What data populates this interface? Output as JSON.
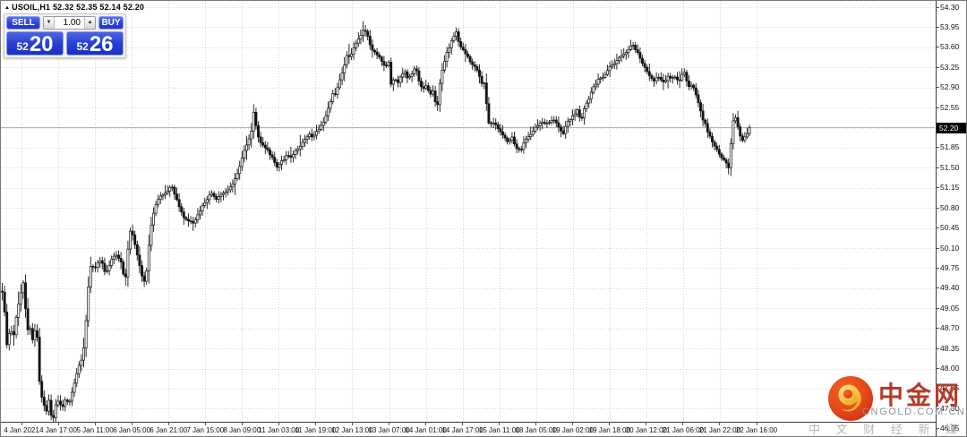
{
  "header": {
    "arrow_icon": "▲",
    "symbol": "USOIL,H1",
    "ohlc": "52.32 52.35 52.14 52.20"
  },
  "trade_panel": {
    "sell_label": "SELL",
    "buy_label": "BUY",
    "volume": "1.00",
    "volume_down_icon": "▼",
    "volume_up_icon": "▲",
    "sell_price_small": "52",
    "sell_price_big": "20",
    "buy_price_small": "52",
    "buy_price_big": "26",
    "accent_blue": "#2b41d6"
  },
  "price_axis": {
    "current_price": "52.20",
    "tag_bg": "#000000",
    "tag_fg": "#ffffff"
  },
  "watermark": {
    "title": "中金网",
    "domain": "CNGOLD.COM.CN",
    "tagline": "中 文 财 经 新 媒 体",
    "logo_ring_color": "#e8491d",
    "logo_swirl_color": "#f6c24a",
    "title_color": "#b53a2b"
  },
  "chart_data": {
    "type": "candlestick",
    "symbol": "USOIL",
    "timeframe": "H1",
    "current_bar_ohlc": {
      "open": 52.32,
      "high": 52.35,
      "low": 52.14,
      "close": 52.2
    },
    "current_price": 52.2,
    "ylim": [
      46.95,
      54.3
    ],
    "price_step": 0.35,
    "grid": true,
    "y_ticks": [
      "54.30",
      "53.95",
      "53.60",
      "53.25",
      "52.90",
      "52.55",
      "52.20",
      "51.85",
      "51.50",
      "51.15",
      "50.80",
      "50.45",
      "50.10",
      "49.75",
      "49.40",
      "49.05",
      "48.70",
      "48.35",
      "48.00",
      "47.65",
      "47.30",
      "46.95"
    ],
    "x_ticks": [
      "4 Jan 2021",
      "4 Jan 17:00",
      "5 Jan 11:00",
      "6 Jan 05:00",
      "6 Jan 21:00",
      "7 Jan 15:00",
      "8 Jan 09:00",
      "11 Jan 03:00",
      "11 Jan 19:00",
      "12 Jan 13:00",
      "13 Jan 07:00",
      "14 Jan 01:00",
      "14 Jan 17:00",
      "15 Jan 11:00",
      "18 Jan 05:00",
      "19 Jan 02:00",
      "19 Jan 18:00",
      "20 Jan 12:00",
      "21 Jan 06:00",
      "21 Jan 22:00",
      "22 Jan 16:00"
    ],
    "bull_color": "#ffffff",
    "bear_color": "#141414",
    "outline_color": "#141414",
    "bid_line_color": "#b3b3b3",
    "path": [
      [
        2,
        49.35
      ],
      [
        4,
        49.0
      ],
      [
        7,
        48.35
      ],
      [
        10,
        48.7
      ],
      [
        14,
        48.55
      ],
      [
        18,
        49.0
      ],
      [
        22,
        49.3
      ],
      [
        25,
        49.5
      ],
      [
        27,
        49.15
      ],
      [
        29,
        48.65
      ],
      [
        32,
        48.75
      ],
      [
        35,
        48.5
      ],
      [
        38,
        48.65
      ],
      [
        42,
        48.5
      ],
      [
        43,
        47.8
      ],
      [
        45,
        47.55
      ],
      [
        48,
        47.4
      ],
      [
        50,
        47.15
      ],
      [
        53,
        47.5
      ],
      [
        55,
        47.25
      ],
      [
        58,
        47.08
      ],
      [
        61,
        47.35
      ],
      [
        64,
        47.45
      ],
      [
        68,
        47.3
      ],
      [
        72,
        47.45
      ],
      [
        76,
        47.38
      ],
      [
        80,
        47.6
      ],
      [
        84,
        47.85
      ],
      [
        88,
        48.1
      ],
      [
        91,
        48.2
      ],
      [
        94,
        48.55
      ],
      [
        97,
        49.3
      ],
      [
        99,
        49.7
      ],
      [
        101,
        49.85
      ],
      [
        104,
        49.7
      ],
      [
        107,
        49.8
      ],
      [
        110,
        49.9
      ],
      [
        113,
        49.85
      ],
      [
        116,
        49.68
      ],
      [
        119,
        49.72
      ],
      [
        122,
        49.85
      ],
      [
        125,
        49.95
      ],
      [
        128,
        50.0
      ],
      [
        131,
        49.92
      ],
      [
        134,
        49.85
      ],
      [
        137,
        49.62
      ],
      [
        140,
        49.58
      ],
      [
        142,
        50.1
      ],
      [
        144,
        50.4
      ],
      [
        147,
        50.35
      ],
      [
        150,
        50.15
      ],
      [
        153,
        49.95
      ],
      [
        156,
        49.7
      ],
      [
        159,
        49.5
      ],
      [
        162,
        49.6
      ],
      [
        165,
        50.1
      ],
      [
        168,
        50.5
      ],
      [
        171,
        50.75
      ],
      [
        174,
        50.9
      ],
      [
        178,
        51.0
      ],
      [
        182,
        51.05
      ],
      [
        186,
        51.1
      ],
      [
        190,
        51.2
      ],
      [
        193,
        51.1
      ],
      [
        196,
        50.95
      ],
      [
        200,
        50.8
      ],
      [
        204,
        50.62
      ],
      [
        208,
        50.6
      ],
      [
        212,
        50.55
      ],
      [
        216,
        50.55
      ],
      [
        220,
        50.7
      ],
      [
        224,
        50.8
      ],
      [
        228,
        50.9
      ],
      [
        232,
        51.0
      ],
      [
        236,
        51.05
      ],
      [
        240,
        50.95
      ],
      [
        244,
        51.0
      ],
      [
        248,
        51.05
      ],
      [
        252,
        51.08
      ],
      [
        256,
        51.15
      ],
      [
        260,
        51.25
      ],
      [
        264,
        51.4
      ],
      [
        268,
        51.6
      ],
      [
        272,
        51.8
      ],
      [
        276,
        51.95
      ],
      [
        280,
        52.15
      ],
      [
        282,
        52.5
      ],
      [
        284,
        52.3
      ],
      [
        287,
        52.05
      ],
      [
        290,
        51.95
      ],
      [
        294,
        51.88
      ],
      [
        298,
        51.8
      ],
      [
        302,
        51.7
      ],
      [
        306,
        51.6
      ],
      [
        309,
        51.5
      ],
      [
        312,
        51.58
      ],
      [
        316,
        51.65
      ],
      [
        320,
        51.72
      ],
      [
        324,
        51.68
      ],
      [
        328,
        51.78
      ],
      [
        332,
        51.85
      ],
      [
        336,
        51.92
      ],
      [
        340,
        52.0
      ],
      [
        344,
        52.08
      ],
      [
        348,
        52.03
      ],
      [
        352,
        52.12
      ],
      [
        356,
        52.18
      ],
      [
        360,
        52.3
      ],
      [
        364,
        52.45
      ],
      [
        368,
        52.65
      ],
      [
        371,
        52.82
      ],
      [
        374,
        52.78
      ],
      [
        377,
        52.95
      ],
      [
        380,
        53.1
      ],
      [
        384,
        53.3
      ],
      [
        387,
        53.5
      ],
      [
        390,
        53.42
      ],
      [
        394,
        53.58
      ],
      [
        398,
        53.7
      ],
      [
        402,
        53.82
      ],
      [
        405,
        53.92
      ],
      [
        408,
        53.85
      ],
      [
        411,
        53.72
      ],
      [
        414,
        53.58
      ],
      [
        418,
        53.5
      ],
      [
        422,
        53.45
      ],
      [
        426,
        53.32
      ],
      [
        430,
        53.28
      ],
      [
        433,
        53.35
      ],
      [
        435,
        52.95
      ],
      [
        439,
        53.05
      ],
      [
        443,
        52.98
      ],
      [
        447,
        53.1
      ],
      [
        451,
        53.18
      ],
      [
        455,
        53.05
      ],
      [
        459,
        53.15
      ],
      [
        463,
        53.27
      ],
      [
        467,
        53.0
      ],
      [
        471,
        52.85
      ],
      [
        475,
        52.95
      ],
      [
        479,
        52.78
      ],
      [
        483,
        52.85
      ],
      [
        487,
        52.5
      ],
      [
        490,
        52.95
      ],
      [
        493,
        53.2
      ],
      [
        496,
        53.4
      ],
      [
        499,
        53.55
      ],
      [
        502,
        53.65
      ],
      [
        505,
        53.78
      ],
      [
        508,
        53.88
      ],
      [
        511,
        53.72
      ],
      [
        514,
        53.6
      ],
      [
        518,
        53.52
      ],
      [
        522,
        53.42
      ],
      [
        526,
        53.3
      ],
      [
        530,
        53.27
      ],
      [
        534,
        53.1
      ],
      [
        538,
        52.95
      ],
      [
        541,
        52.98
      ],
      [
        543,
        52.4
      ],
      [
        546,
        52.22
      ],
      [
        549,
        52.32
      ],
      [
        552,
        52.26
      ],
      [
        556,
        52.15
      ],
      [
        560,
        52.1
      ],
      [
        564,
        52.0
      ],
      [
        567,
        51.95
      ],
      [
        570,
        52.05
      ],
      [
        573,
        51.95
      ],
      [
        576,
        51.85
      ],
      [
        580,
        51.78
      ],
      [
        584,
        51.95
      ],
      [
        588,
        52.0
      ],
      [
        592,
        52.1
      ],
      [
        596,
        52.2
      ],
      [
        600,
        52.25
      ],
      [
        604,
        52.3
      ],
      [
        608,
        52.25
      ],
      [
        612,
        52.3
      ],
      [
        616,
        52.35
      ],
      [
        620,
        52.3
      ],
      [
        624,
        52.18
      ],
      [
        628,
        52.1
      ],
      [
        632,
        52.3
      ],
      [
        636,
        52.35
      ],
      [
        640,
        52.42
      ],
      [
        644,
        52.5
      ],
      [
        648,
        52.3
      ],
      [
        652,
        52.55
      ],
      [
        656,
        52.68
      ],
      [
        660,
        52.85
      ],
      [
        664,
        52.95
      ],
      [
        668,
        53.05
      ],
      [
        672,
        53.08
      ],
      [
        676,
        53.15
      ],
      [
        680,
        53.25
      ],
      [
        685,
        53.3
      ],
      [
        690,
        53.4
      ],
      [
        695,
        53.48
      ],
      [
        700,
        53.55
      ],
      [
        705,
        53.65
      ],
      [
        709,
        53.55
      ],
      [
        713,
        53.45
      ],
      [
        717,
        53.3
      ],
      [
        721,
        53.2
      ],
      [
        725,
        53.1
      ],
      [
        729,
        53.0
      ],
      [
        733,
        53.1
      ],
      [
        737,
        53.05
      ],
      [
        741,
        53.0
      ],
      [
        745,
        53.1
      ],
      [
        749,
        53.05
      ],
      [
        753,
        53.1
      ],
      [
        757,
        53.0
      ],
      [
        760,
        53.1
      ],
      [
        763,
        53.2
      ],
      [
        766,
        53.0
      ],
      [
        769,
        52.9
      ],
      [
        772,
        52.95
      ],
      [
        775,
        52.85
      ],
      [
        778,
        52.7
      ],
      [
        781,
        52.5
      ],
      [
        784,
        52.35
      ],
      [
        787,
        52.28
      ],
      [
        790,
        52.1
      ],
      [
        793,
        52.0
      ],
      [
        796,
        51.9
      ],
      [
        800,
        51.8
      ],
      [
        804,
        51.7
      ],
      [
        808,
        51.65
      ],
      [
        813,
        51.48
      ],
      [
        816,
        52.05
      ],
      [
        819,
        52.45
      ],
      [
        822,
        52.28
      ],
      [
        825,
        52.08
      ],
      [
        828,
        51.98
      ],
      [
        831,
        52.05
      ],
      [
        834,
        52.1
      ],
      [
        838,
        52.2
      ]
    ]
  }
}
